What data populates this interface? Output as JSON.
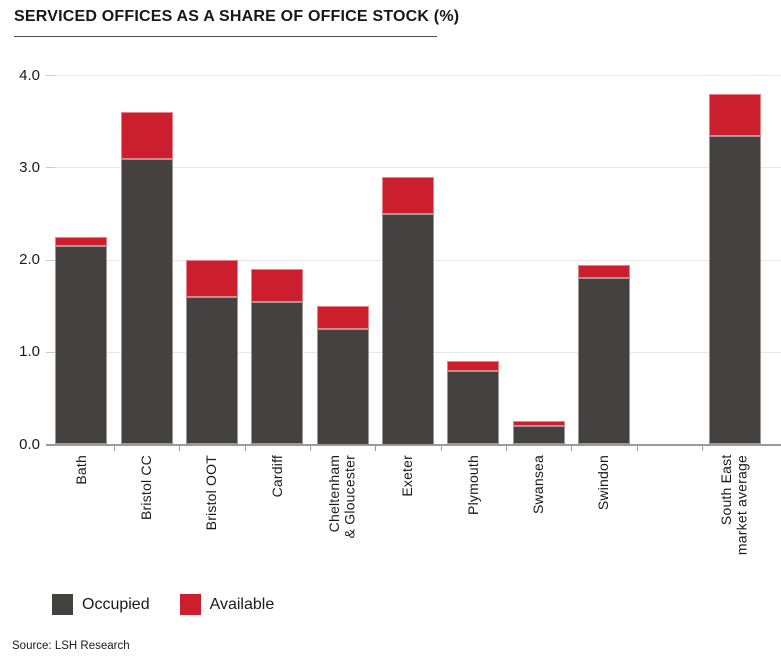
{
  "chart_data": {
    "type": "bar",
    "stacked": true,
    "title": "SERVICED OFFICES AS A SHARE OF OFFICE STOCK (%)",
    "source": "Source: LSH Research",
    "ylim": [
      0,
      4.0
    ],
    "ytick_labels": [
      "0.0",
      "1.0",
      "2.0",
      "3.0",
      "4.0"
    ],
    "grid": true,
    "legend_position": "bottom",
    "categories": [
      "Bath",
      "Bristol CC",
      "Bristol OOT",
      "Cardiff",
      "Cheltenham\n& Gloucester",
      "Exeter",
      "Plymouth",
      "Swansea",
      "Swindon",
      "",
      "South East\nmarket average"
    ],
    "series": [
      {
        "name": "Occupied",
        "color": "#454141",
        "values": [
          2.15,
          3.1,
          1.6,
          1.55,
          1.25,
          2.5,
          0.8,
          0.2,
          1.8,
          null,
          3.35
        ]
      },
      {
        "name": "Available",
        "color": "#cc1f2d",
        "values": [
          0.1,
          0.5,
          0.4,
          0.35,
          0.25,
          0.4,
          0.1,
          0.05,
          0.15,
          null,
          0.45
        ]
      }
    ]
  }
}
